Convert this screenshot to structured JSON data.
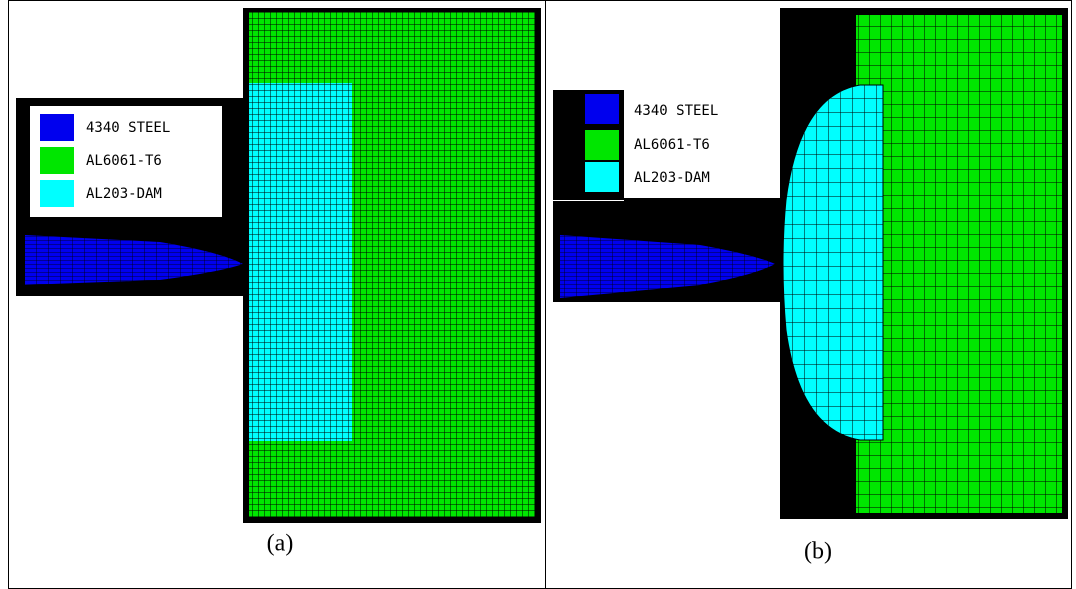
{
  "panel_a": {
    "legend": [
      "4340 STEEL",
      "AL6061-T6",
      "AL203-DAM"
    ],
    "caption": "(a)"
  },
  "panel_b": {
    "legend": [
      "4340 STEEL",
      "AL6061-T6",
      "AL203-DAM"
    ],
    "caption": "(b)"
  }
}
